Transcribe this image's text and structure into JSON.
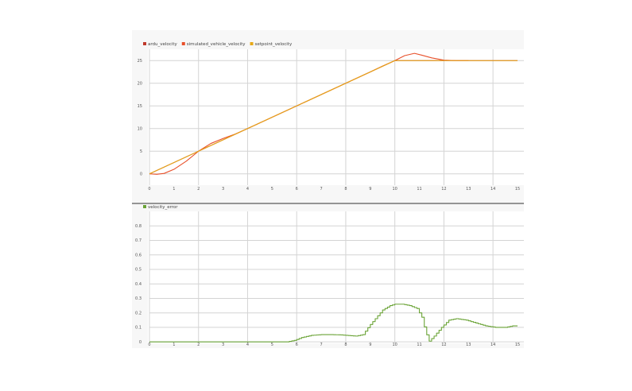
{
  "chart_data": [
    {
      "type": "line",
      "legend": {
        "placement": "top-left"
      },
      "grid": true,
      "xlim": [
        0,
        15
      ],
      "ylim": [
        -2.5,
        27.5
      ],
      "x_ticks": [
        "0",
        "1",
        "2",
        "3",
        "4",
        "5",
        "6",
        "7",
        "8",
        "9",
        "10",
        "11",
        "12",
        "13",
        "14",
        "15"
      ],
      "y_ticks": [
        "0",
        "5",
        "10",
        "15",
        "20",
        "25"
      ],
      "series": [
        {
          "name": "ardu_velocity",
          "color": "#c0392b",
          "x": [
            0,
            10,
            15
          ],
          "y": [
            0,
            25,
            25
          ]
        },
        {
          "name": "simulated_vehicle_velocity",
          "color": "#e8502a",
          "x": [
            0,
            0.3,
            0.6,
            1.0,
            1.5,
            2.0,
            2.5,
            3.0,
            3.5,
            4.0,
            5,
            6,
            7,
            8,
            9,
            9.5,
            10,
            10.4,
            10.8,
            11.1,
            11.5,
            12,
            12.5,
            13
          ],
          "y": [
            0,
            -0.1,
            0.1,
            1.0,
            2.8,
            5.0,
            6.7,
            7.8,
            8.8,
            10.0,
            12.5,
            15.0,
            17.5,
            20.0,
            22.5,
            23.8,
            25.0,
            26.1,
            26.6,
            26.2,
            25.6,
            25.1,
            25.0,
            25.0
          ]
        },
        {
          "name": "setpoint_velocity",
          "color": "#e6a817",
          "x": [
            0,
            10,
            15
          ],
          "y": [
            0,
            25,
            25
          ]
        }
      ]
    },
    {
      "type": "line",
      "legend": {
        "placement": "top-left"
      },
      "grid": true,
      "xlim": [
        0,
        15
      ],
      "ylim": [
        -0.01,
        0.9
      ],
      "x_ticks": [
        "0",
        "1",
        "2",
        "3",
        "4",
        "5",
        "6",
        "7",
        "8",
        "9",
        "10",
        "11",
        "12",
        "13",
        "14",
        "15"
      ],
      "y_ticks": [
        "0",
        "0.1",
        "0.2",
        "0.3",
        "0.4",
        "0.5",
        "0.6",
        "0.7",
        "0.8"
      ],
      "series": [
        {
          "name": "velocity_error",
          "color": "#6aa336",
          "x": [
            0,
            5.6,
            5.9,
            6.2,
            6.6,
            7.0,
            7.4,
            7.8,
            8.1,
            8.4,
            8.7,
            8.95,
            9.2,
            9.5,
            9.8,
            10.0,
            10.3,
            10.6,
            10.9,
            11.1,
            11.25,
            11.4,
            11.6,
            11.9,
            12.2,
            12.5,
            12.9,
            13.3,
            13.7,
            14.1,
            14.5,
            14.8,
            15.0
          ],
          "y": [
            0,
            0,
            0.01,
            0.03,
            0.045,
            0.05,
            0.05,
            0.048,
            0.044,
            0.04,
            0.05,
            0.11,
            0.16,
            0.22,
            0.25,
            0.26,
            0.26,
            0.25,
            0.23,
            0.17,
            0.07,
            0.005,
            0.04,
            0.1,
            0.15,
            0.16,
            0.15,
            0.13,
            0.11,
            0.1,
            0.1,
            0.11,
            0.11
          ]
        }
      ]
    }
  ]
}
